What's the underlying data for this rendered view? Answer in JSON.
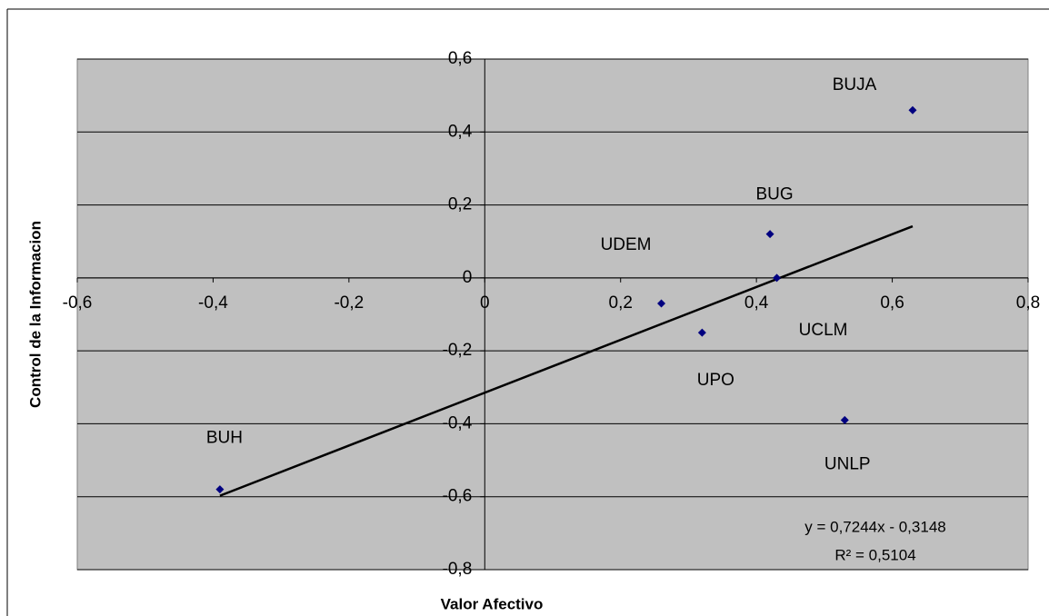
{
  "chart_data": {
    "type": "scatter",
    "x_label": "Valor Afectivo",
    "y_label": "Control de la Informacion",
    "point_labels": [
      "BUJA",
      "BUG",
      "UDEM",
      "UPO",
      "UCLM",
      "UNLP",
      "BUH"
    ],
    "x": [
      0.63,
      0.42,
      0.26,
      0.32,
      0.43,
      0.53,
      -0.39
    ],
    "values": [
      0.46,
      0.12,
      -0.07,
      -0.15,
      0.0,
      -0.39,
      -0.58
    ],
    "color": "#000080",
    "xlim": [
      -0.6,
      0.8
    ],
    "xticks": [
      {
        "value": -0.6,
        "label": "-0,6"
      },
      {
        "value": -0.4,
        "label": "-0,4"
      },
      {
        "value": -0.2,
        "label": "-0,2"
      },
      0,
      {
        "value": 0.2,
        "label": "0,2"
      },
      {
        "value": 0.4,
        "label": "0,4"
      },
      {
        "value": 0.6,
        "label": "0,6"
      },
      {
        "value": 0.8,
        "label": "0,8"
      }
    ],
    "ylim": [
      -0.8,
      0.6
    ],
    "yticks": [
      {
        "value": -0.8,
        "label": "-0,8"
      },
      {
        "value": -0.6,
        "label": "-0,6"
      },
      {
        "value": -0.4,
        "label": "-0,4"
      },
      {
        "value": -0.2,
        "label": "-0,2"
      },
      0,
      {
        "value": 0.2,
        "label": "0,2"
      },
      {
        "value": 0.4,
        "label": "0,4"
      },
      {
        "value": 0.6,
        "label": "0,6"
      }
    ],
    "grid": true,
    "trendline": {
      "slope": 0.7244,
      "intercept": -0.3148,
      "equation": "y = 0,7244x - 0,3148",
      "r_squared": "R² = 0,5104"
    }
  }
}
